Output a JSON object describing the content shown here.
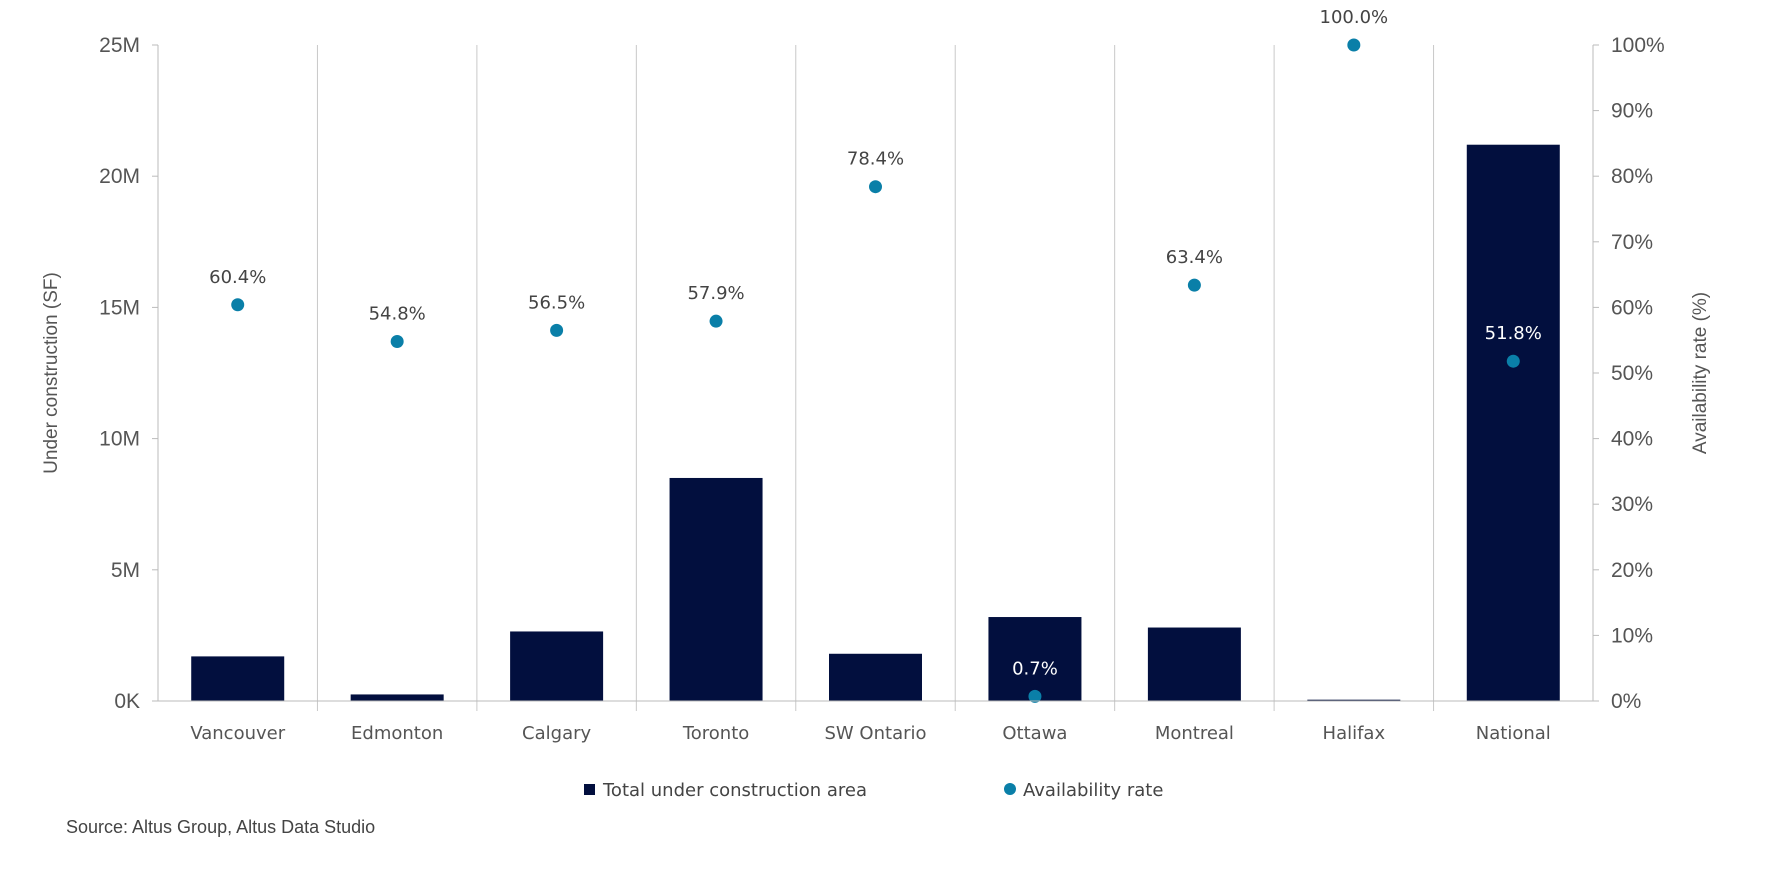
{
  "chart_data": {
    "type": "bar+scatter",
    "categories": [
      "Vancouver",
      "Edmonton",
      "Calgary",
      "Toronto",
      "SW Ontario",
      "Ottawa",
      "Montreal",
      "Halifax",
      "National"
    ],
    "series": [
      {
        "name": "Total under construction area",
        "type": "bar",
        "axis": "left",
        "color": "#020f3e",
        "values": [
          1.7,
          0.25,
          2.65,
          8.5,
          1.8,
          3.2,
          2.8,
          0.05,
          21.2
        ]
      },
      {
        "name": "Availability rate",
        "type": "scatter",
        "axis": "right",
        "color": "#0a7fa8",
        "values": [
          60.4,
          54.8,
          56.5,
          57.9,
          78.4,
          0.7,
          63.4,
          100.0,
          51.8
        ],
        "labels": [
          "60.4%",
          "54.8%",
          "56.5%",
          "57.9%",
          "78.4%",
          "0.7%",
          "63.4%",
          "100.0%",
          "51.8%"
        ]
      }
    ],
    "y_left": {
      "label": "Under construction (SF)",
      "range": [
        0,
        25
      ],
      "unit": "M SF",
      "ticks": [
        "0K",
        "5M",
        "10M",
        "15M",
        "20M",
        "25M"
      ]
    },
    "y_right": {
      "label": "Availability rate (%)",
      "range": [
        0,
        100
      ],
      "ticks": [
        "0%",
        "10%",
        "20%",
        "30%",
        "40%",
        "50%",
        "60%",
        "70%",
        "80%",
        "90%",
        "100%"
      ]
    },
    "grid": "vertical separators between categories",
    "legend": "bottom",
    "source": "Source: Altus Group, Altus Data Studio"
  }
}
